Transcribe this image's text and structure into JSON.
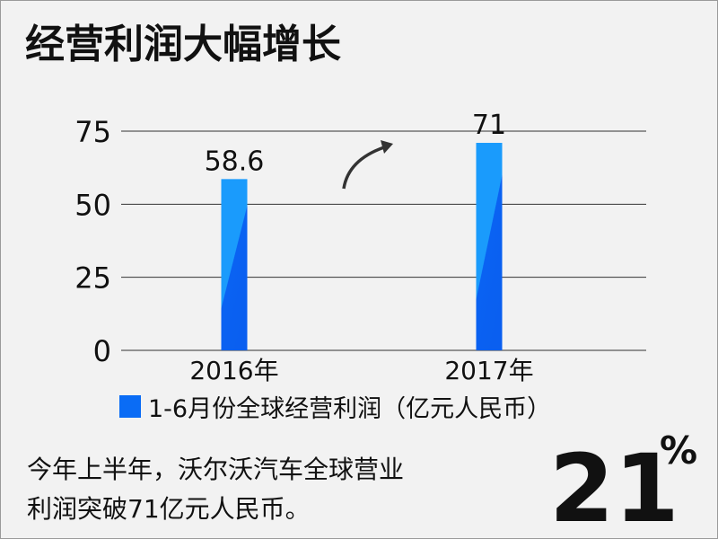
{
  "chart_data": {
    "type": "bar",
    "title": "经营利润大幅增长",
    "categories": [
      "2016年",
      "2017年"
    ],
    "series": [
      {
        "name": "1-6月份全球经营利润（亿元人民币）",
        "color": "#1a9bfc",
        "values": [
          58.6,
          71
        ]
      }
    ],
    "ylim": [
      0,
      75
    ],
    "yticks": [
      0,
      25,
      50,
      75
    ],
    "grid": true,
    "annotation": [
      "今年上半年，沃尔沃汽车全球营业",
      "利润突破71亿元人民币。"
    ],
    "highlight": {
      "value": 21,
      "unit": "%"
    }
  }
}
